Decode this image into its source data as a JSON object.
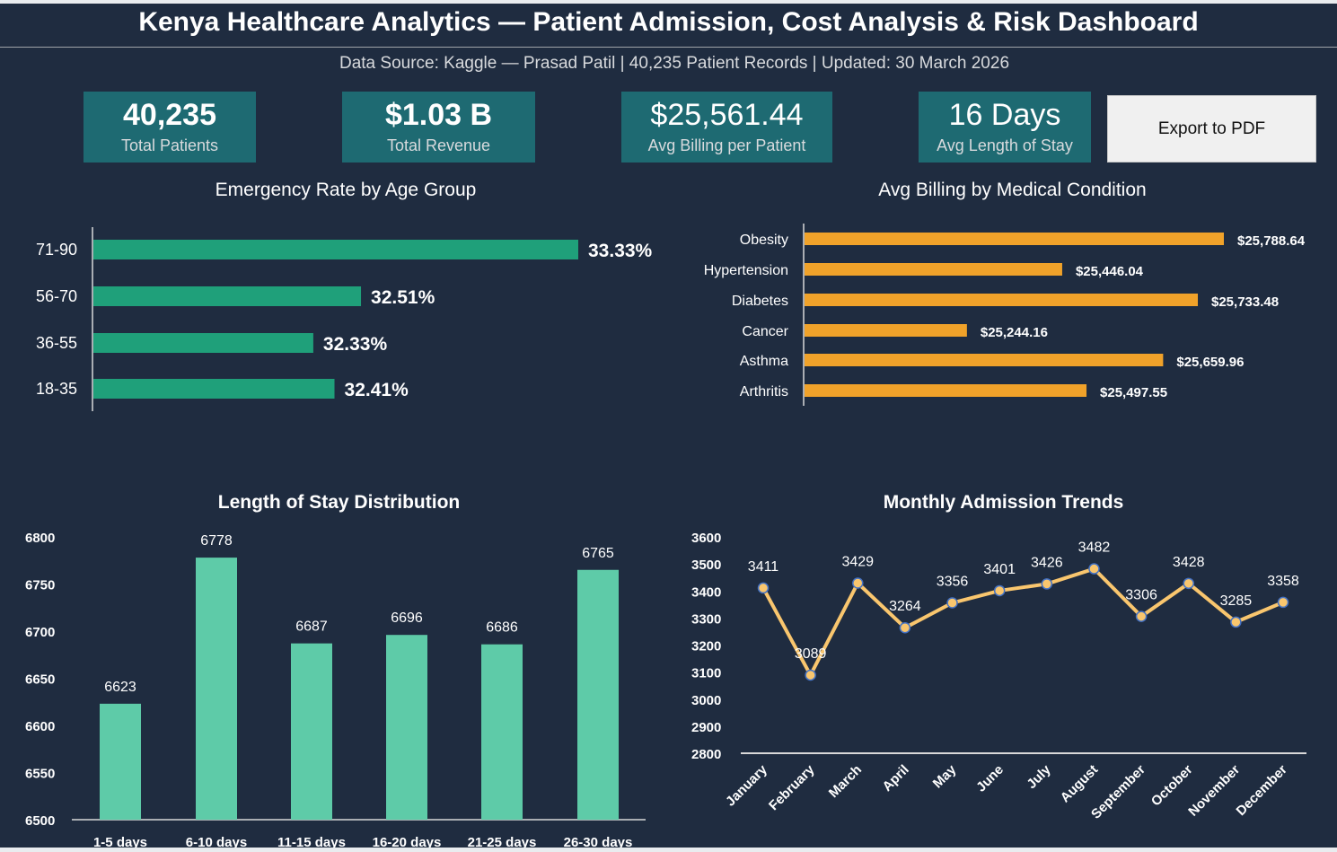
{
  "header": {
    "title": "Kenya Healthcare Analytics — Patient Admission, Cost Analysis & Risk Dashboard",
    "subtitle": "Data Source: Kaggle — Prasad Patil | 40,235 Patient Records | Updated: 30 March 2026"
  },
  "kpis": [
    {
      "value": "40,235",
      "label": "Total Patients"
    },
    {
      "value": "$1.03 B",
      "label": "Total Revenue"
    },
    {
      "value": "$25,561.44",
      "label": "Avg Billing per Patient"
    },
    {
      "value": "16 Days",
      "label": "Avg Length of Stay"
    }
  ],
  "export_label": "Export to PDF",
  "colors": {
    "background": "#1f2c40",
    "kpi": "#1e6a72",
    "emergency_bar": "#1fa07a",
    "billing_bar": "#f0a22a",
    "stay_bar": "#5ecba8",
    "trend_line": "#f9c66e",
    "marker_edge": "#4472c4"
  },
  "chart_data": [
    {
      "type": "bar",
      "orientation": "horizontal",
      "title": "Emergency Rate by Age Group",
      "categories": [
        "71-90",
        "56-70",
        "36-55",
        "18-35"
      ],
      "values": [
        33.33,
        32.51,
        32.33,
        32.41
      ],
      "labels": [
        "33.33%",
        "32.51%",
        "32.33%",
        "32.41%"
      ],
      "xlim": [
        31.5,
        33.6
      ]
    },
    {
      "type": "bar",
      "orientation": "horizontal",
      "title": "Avg Billing by Medical Condition",
      "categories": [
        "Obesity",
        "Hypertension",
        "Diabetes",
        "Cancer",
        "Asthma",
        "Arthritis"
      ],
      "values": [
        25788.64,
        25446.04,
        25733.48,
        25244.16,
        25659.96,
        25497.55
      ],
      "labels": [
        "$25,788.64",
        "$25,446.04",
        "$25,733.48",
        "$25,244.16",
        "$25,659.96",
        "$25,497.55"
      ],
      "xlim": [
        24900,
        26000
      ]
    },
    {
      "type": "bar",
      "title": "Length of Stay Distribution",
      "categories": [
        "1-5 days",
        "6-10 days",
        "11-15 days",
        "16-20 days",
        "21-25 days",
        "26-30 days"
      ],
      "values": [
        6623,
        6778,
        6687,
        6696,
        6686,
        6765
      ],
      "ylim": [
        6500,
        6800
      ],
      "yticks": [
        "6800",
        "6750",
        "6700",
        "6650",
        "6600",
        "6550",
        "6500"
      ]
    },
    {
      "type": "line",
      "title": "Monthly Admission Trends",
      "categories": [
        "January",
        "February",
        "March",
        "April",
        "May",
        "June",
        "July",
        "August",
        "September",
        "October",
        "November",
        "December"
      ],
      "values": [
        3411,
        3089,
        3429,
        3264,
        3356,
        3401,
        3426,
        3482,
        3306,
        3428,
        3285,
        3358
      ],
      "ylim": [
        2800,
        3600
      ],
      "yticks": [
        "3600",
        "3500",
        "3400",
        "3300",
        "3200",
        "3100",
        "3000",
        "2900",
        "2800"
      ]
    }
  ]
}
